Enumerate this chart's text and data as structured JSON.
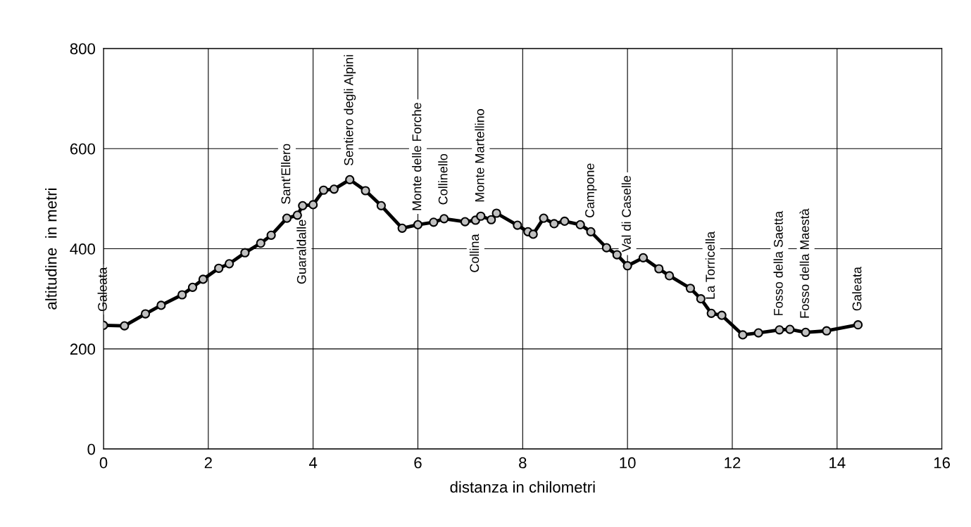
{
  "chart_data": {
    "type": "line",
    "xlabel": "distanza in chilometri",
    "ylabel": "altitudine  in metri",
    "x": [
      0,
      0.4,
      0.8,
      1.1,
      1.5,
      1.7,
      1.9,
      2.2,
      2.4,
      2.7,
      3.0,
      3.2,
      3.5,
      3.7,
      3.8,
      4.0,
      4.2,
      4.4,
      4.7,
      5.0,
      5.3,
      5.7,
      6.0,
      6.3,
      6.5,
      6.9,
      7.1,
      7.2,
      7.4,
      7.5,
      7.9,
      8.1,
      8.2,
      8.4,
      8.6,
      8.8,
      9.1,
      9.3,
      9.6,
      9.8,
      10.0,
      10.3,
      10.6,
      10.8,
      11.2,
      11.4,
      11.6,
      11.8,
      12.2,
      12.5,
      12.9,
      13.1,
      13.4,
      13.8,
      14.4
    ],
    "series": [
      {
        "color": "#000000",
        "values": [
          247,
          246,
          270,
          287,
          308,
          323,
          339,
          361,
          370,
          392,
          411,
          427,
          461,
          467,
          486,
          488,
          517,
          519,
          538,
          516,
          486,
          441,
          448,
          453,
          460,
          454,
          457,
          465,
          458,
          471,
          447,
          434,
          429,
          461,
          450,
          455,
          448,
          434,
          402,
          388,
          366,
          382,
          360,
          346,
          321,
          300,
          271,
          267,
          228,
          232,
          238,
          239,
          233,
          236,
          248
        ]
      }
    ],
    "marker": "circle",
    "line_style": "solid",
    "xlim": [
      0,
      16
    ],
    "xticks": [
      0,
      2,
      4,
      6,
      8,
      10,
      12,
      14,
      16
    ],
    "ylim": [
      0,
      800
    ],
    "yticks": [
      0,
      200,
      400,
      600,
      800
    ],
    "grid": true,
    "annotations": [
      {
        "text": "Galeata",
        "x": 0,
        "y": 247
      },
      {
        "text": "Sant'Ellero",
        "x": 3.5,
        "y": 461
      },
      {
        "text": "Guaraldalle",
        "x": 3.8,
        "y": 486
      },
      {
        "text": "Sentiero degli Alpini",
        "x": 4.7,
        "y": 538
      },
      {
        "text": "Monte delle Forche",
        "x": 6.0,
        "y": 448
      },
      {
        "text": "Collinello",
        "x": 6.5,
        "y": 460
      },
      {
        "text": "Monte Martellino",
        "x": 7.2,
        "y": 465
      },
      {
        "text": "Collina",
        "x": 7.1,
        "y": 457
      },
      {
        "text": "Campone",
        "x": 9.3,
        "y": 434
      },
      {
        "text": "Val di Caselle",
        "x": 10.0,
        "y": 366
      },
      {
        "text": "La Torricella",
        "x": 11.6,
        "y": 271
      },
      {
        "text": "Fosso della Saetta",
        "x": 12.9,
        "y": 238
      },
      {
        "text": "Fosso della Maestà",
        "x": 13.4,
        "y": 233
      },
      {
        "text": "Galeata",
        "x": 14.4,
        "y": 248
      }
    ]
  }
}
